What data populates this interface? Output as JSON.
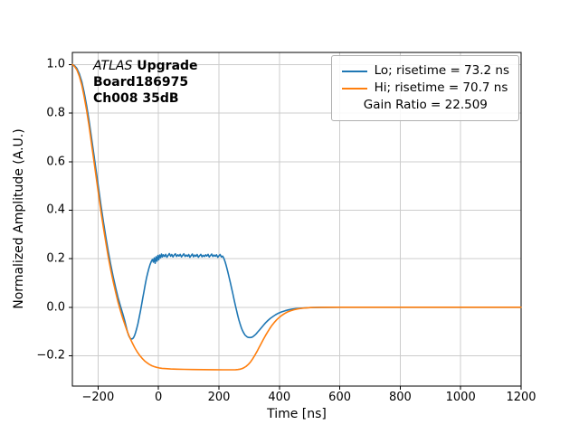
{
  "chart_data": {
    "type": "line",
    "xlabel": "Time [ns]",
    "ylabel": "Normalized Amplitude (A.U.)",
    "xlim": [
      -285,
      1200
    ],
    "ylim": [
      -0.325,
      1.05
    ],
    "grid": true,
    "grid_color": "#cccccc",
    "spine_color": "#000000",
    "annotation": {
      "line1_italic": "ATLAS",
      "line1_bold": " Upgrade",
      "line2": "Board186975",
      "line3": "Ch008 35dB"
    },
    "legend": {
      "position": "upper right",
      "entries": [
        {
          "label": "Lo; risetime = 73.2 ns",
          "color": "#1f77b4",
          "handle": "line"
        },
        {
          "label": "Hi; risetime = 70.7 ns",
          "color": "#ff7f0e",
          "handle": "line"
        },
        {
          "label": "Gain Ratio = 22.509",
          "handle": "none"
        }
      ]
    },
    "xticks": [
      {
        "v": -200,
        "label": "−200"
      },
      {
        "v": 0,
        "label": "0"
      },
      {
        "v": 200,
        "label": "200"
      },
      {
        "v": 400,
        "label": "400"
      },
      {
        "v": 600,
        "label": "600"
      },
      {
        "v": 800,
        "label": "800"
      },
      {
        "v": 1000,
        "label": "1000"
      },
      {
        "v": 1200,
        "label": "1200"
      }
    ],
    "yticks": [
      {
        "v": -0.2,
        "label": "−0.2"
      },
      {
        "v": 0.0,
        "label": "0.0"
      },
      {
        "v": 0.2,
        "label": "0.2"
      },
      {
        "v": 0.4,
        "label": "0.4"
      },
      {
        "v": 0.6,
        "label": "0.6"
      },
      {
        "v": 0.8,
        "label": "0.8"
      },
      {
        "v": 1.0,
        "label": "1.0"
      }
    ],
    "series": [
      {
        "name": "Lo",
        "color": "#1f77b4",
        "points": [
          [
            -285,
            1.0
          ],
          [
            -278,
            0.996
          ],
          [
            -270,
            0.984
          ],
          [
            -262,
            0.962
          ],
          [
            -254,
            0.93
          ],
          [
            -246,
            0.886
          ],
          [
            -238,
            0.832
          ],
          [
            -230,
            0.77
          ],
          [
            -222,
            0.702
          ],
          [
            -214,
            0.631
          ],
          [
            -206,
            0.559
          ],
          [
            -198,
            0.487
          ],
          [
            -190,
            0.417
          ],
          [
            -182,
            0.35
          ],
          [
            -174,
            0.287
          ],
          [
            -166,
            0.229
          ],
          [
            -158,
            0.175
          ],
          [
            -150,
            0.126
          ],
          [
            -142,
            0.081
          ],
          [
            -134,
            0.041
          ],
          [
            -126,
            0.005
          ],
          [
            -118,
            -0.028
          ],
          [
            -112,
            -0.055
          ],
          [
            -107,
            -0.08
          ],
          [
            -103,
            -0.1
          ],
          [
            -100,
            -0.112
          ],
          [
            -97,
            -0.121
          ],
          [
            -94,
            -0.127
          ],
          [
            -91,
            -0.13
          ],
          [
            -88,
            -0.131
          ],
          [
            -85,
            -0.129
          ],
          [
            -82,
            -0.124
          ],
          [
            -79,
            -0.116
          ],
          [
            -76,
            -0.105
          ],
          [
            -72,
            -0.088
          ],
          [
            -68,
            -0.067
          ],
          [
            -64,
            -0.043
          ],
          [
            -60,
            -0.017
          ],
          [
            -56,
            0.01
          ],
          [
            -52,
            0.038
          ],
          [
            -48,
            0.066
          ],
          [
            -44,
            0.093
          ],
          [
            -40,
            0.118
          ],
          [
            -36,
            0.14
          ],
          [
            -32,
            0.159
          ],
          [
            -28,
            0.175
          ],
          [
            -24,
            0.188
          ],
          [
            -20,
            0.197
          ],
          [
            -17,
            0.186
          ],
          [
            -14,
            0.203
          ],
          [
            -11,
            0.181
          ],
          [
            -8,
            0.208
          ],
          [
            -5,
            0.19
          ],
          [
            -2,
            0.213
          ],
          [
            1,
            0.196
          ],
          [
            4,
            0.215
          ],
          [
            7,
            0.204
          ],
          [
            10,
            0.219
          ],
          [
            13,
            0.207
          ],
          [
            16,
            0.216
          ],
          [
            20,
            0.209
          ],
          [
            24,
            0.218
          ],
          [
            28,
            0.206
          ],
          [
            32,
            0.214
          ],
          [
            36,
            0.221
          ],
          [
            40,
            0.21
          ],
          [
            44,
            0.217
          ],
          [
            48,
            0.207
          ],
          [
            52,
            0.215
          ],
          [
            56,
            0.22
          ],
          [
            60,
            0.209
          ],
          [
            64,
            0.216
          ],
          [
            68,
            0.211
          ],
          [
            72,
            0.218
          ],
          [
            76,
            0.207
          ],
          [
            80,
            0.214
          ],
          [
            84,
            0.22
          ],
          [
            88,
            0.209
          ],
          [
            92,
            0.215
          ],
          [
            96,
            0.21
          ],
          [
            100,
            0.217
          ],
          [
            104,
            0.206
          ],
          [
            108,
            0.213
          ],
          [
            112,
            0.219
          ],
          [
            116,
            0.208
          ],
          [
            120,
            0.215
          ],
          [
            124,
            0.21
          ],
          [
            128,
            0.217
          ],
          [
            132,
            0.206
          ],
          [
            136,
            0.212
          ],
          [
            140,
            0.218
          ],
          [
            144,
            0.208
          ],
          [
            148,
            0.214
          ],
          [
            152,
            0.209
          ],
          [
            156,
            0.216
          ],
          [
            160,
            0.211
          ],
          [
            164,
            0.218
          ],
          [
            168,
            0.207
          ],
          [
            172,
            0.213
          ],
          [
            176,
            0.219
          ],
          [
            180,
            0.209
          ],
          [
            184,
            0.215
          ],
          [
            188,
            0.21
          ],
          [
            192,
            0.216
          ],
          [
            196,
            0.206
          ],
          [
            200,
            0.212
          ],
          [
            204,
            0.217
          ],
          [
            208,
            0.207
          ],
          [
            212,
            0.211
          ],
          [
            215,
            0.205
          ],
          [
            218,
            0.196
          ],
          [
            221,
            0.185
          ],
          [
            224,
            0.172
          ],
          [
            227,
            0.158
          ],
          [
            230,
            0.143
          ],
          [
            234,
            0.122
          ],
          [
            238,
            0.1
          ],
          [
            242,
            0.078
          ],
          [
            246,
            0.055
          ],
          [
            250,
            0.032
          ],
          [
            254,
            0.01
          ],
          [
            258,
            -0.012
          ],
          [
            262,
            -0.033
          ],
          [
            266,
            -0.052
          ],
          [
            270,
            -0.069
          ],
          [
            274,
            -0.084
          ],
          [
            278,
            -0.096
          ],
          [
            282,
            -0.106
          ],
          [
            286,
            -0.114
          ],
          [
            290,
            -0.119
          ],
          [
            294,
            -0.1225
          ],
          [
            298,
            -0.1245
          ],
          [
            303,
            -0.125
          ],
          [
            308,
            -0.124
          ],
          [
            313,
            -0.121
          ],
          [
            318,
            -0.116
          ],
          [
            323,
            -0.11
          ],
          [
            328,
            -0.103
          ],
          [
            334,
            -0.094
          ],
          [
            340,
            -0.085
          ],
          [
            347,
            -0.075
          ],
          [
            354,
            -0.065
          ],
          [
            362,
            -0.055
          ],
          [
            370,
            -0.046
          ],
          [
            379,
            -0.038
          ],
          [
            388,
            -0.0305
          ],
          [
            398,
            -0.024
          ],
          [
            408,
            -0.019
          ],
          [
            419,
            -0.0145
          ],
          [
            430,
            -0.011
          ],
          [
            442,
            -0.008
          ],
          [
            455,
            -0.0058
          ],
          [
            470,
            -0.004
          ],
          [
            486,
            -0.0027
          ],
          [
            503,
            -0.0017
          ],
          [
            521,
            -0.001
          ],
          [
            540,
            -0.0006
          ],
          [
            565,
            -0.0003
          ],
          [
            600,
            -0.0001
          ],
          [
            650,
            0
          ],
          [
            700,
            0
          ],
          [
            750,
            0
          ],
          [
            800,
            0
          ],
          [
            850,
            0
          ],
          [
            900,
            0
          ],
          [
            950,
            0
          ],
          [
            1000,
            0
          ],
          [
            1050,
            0
          ],
          [
            1100,
            0
          ],
          [
            1150,
            0
          ],
          [
            1200,
            0
          ]
        ]
      },
      {
        "name": "Hi",
        "color": "#ff7f0e",
        "points": [
          [
            -285,
            1.0
          ],
          [
            -278,
            0.993
          ],
          [
            -270,
            0.978
          ],
          [
            -262,
            0.952
          ],
          [
            -254,
            0.916
          ],
          [
            -246,
            0.868
          ],
          [
            -238,
            0.812
          ],
          [
            -230,
            0.748
          ],
          [
            -222,
            0.678
          ],
          [
            -214,
            0.606
          ],
          [
            -206,
            0.533
          ],
          [
            -198,
            0.461
          ],
          [
            -190,
            0.392
          ],
          [
            -182,
            0.326
          ],
          [
            -174,
            0.264
          ],
          [
            -166,
            0.207
          ],
          [
            -158,
            0.154
          ],
          [
            -150,
            0.106
          ],
          [
            -142,
            0.062
          ],
          [
            -134,
            0.022
          ],
          [
            -126,
            -0.014
          ],
          [
            -118,
            -0.047
          ],
          [
            -110,
            -0.077
          ],
          [
            -102,
            -0.104
          ],
          [
            -94,
            -0.128
          ],
          [
            -86,
            -0.149
          ],
          [
            -78,
            -0.168
          ],
          [
            -70,
            -0.185
          ],
          [
            -62,
            -0.199
          ],
          [
            -54,
            -0.211
          ],
          [
            -46,
            -0.221
          ],
          [
            -38,
            -0.229
          ],
          [
            -30,
            -0.236
          ],
          [
            -22,
            -0.241
          ],
          [
            -14,
            -0.245
          ],
          [
            -6,
            -0.248
          ],
          [
            2,
            -0.25
          ],
          [
            12,
            -0.252
          ],
          [
            24,
            -0.253
          ],
          [
            40,
            -0.2545
          ],
          [
            60,
            -0.2555
          ],
          [
            85,
            -0.2562
          ],
          [
            115,
            -0.2568
          ],
          [
            150,
            -0.2573
          ],
          [
            185,
            -0.2577
          ],
          [
            215,
            -0.2579
          ],
          [
            240,
            -0.258
          ],
          [
            255,
            -0.2577
          ],
          [
            263,
            -0.2568
          ],
          [
            270,
            -0.2552
          ],
          [
            277,
            -0.2526
          ],
          [
            284,
            -0.2486
          ],
          [
            291,
            -0.2428
          ],
          [
            298,
            -0.2348
          ],
          [
            305,
            -0.2246
          ],
          [
            312,
            -0.2122
          ],
          [
            319,
            -0.198
          ],
          [
            326,
            -0.1824
          ],
          [
            333,
            -0.166
          ],
          [
            340,
            -0.1493
          ],
          [
            347,
            -0.1328
          ],
          [
            354,
            -0.1169
          ],
          [
            361,
            -0.102
          ],
          [
            368,
            -0.0882
          ],
          [
            375,
            -0.0757
          ],
          [
            383,
            -0.0629
          ],
          [
            391,
            -0.0519
          ],
          [
            399,
            -0.0425
          ],
          [
            408,
            -0.0335
          ],
          [
            417,
            -0.0262
          ],
          [
            427,
            -0.0196
          ],
          [
            437,
            -0.0146
          ],
          [
            448,
            -0.0104
          ],
          [
            460,
            -0.0071
          ],
          [
            473,
            -0.0047
          ],
          [
            487,
            -0.0029
          ],
          [
            502,
            -0.0017
          ],
          [
            520,
            -0.0009
          ],
          [
            540,
            -0.0004
          ],
          [
            565,
            -0.0002
          ],
          [
            600,
            -0.0001
          ],
          [
            650,
            0
          ],
          [
            700,
            0
          ],
          [
            750,
            0
          ],
          [
            800,
            0
          ],
          [
            850,
            0
          ],
          [
            900,
            0
          ],
          [
            950,
            0
          ],
          [
            1000,
            0
          ],
          [
            1050,
            0
          ],
          [
            1100,
            0
          ],
          [
            1150,
            0
          ],
          [
            1200,
            0
          ]
        ]
      }
    ]
  }
}
